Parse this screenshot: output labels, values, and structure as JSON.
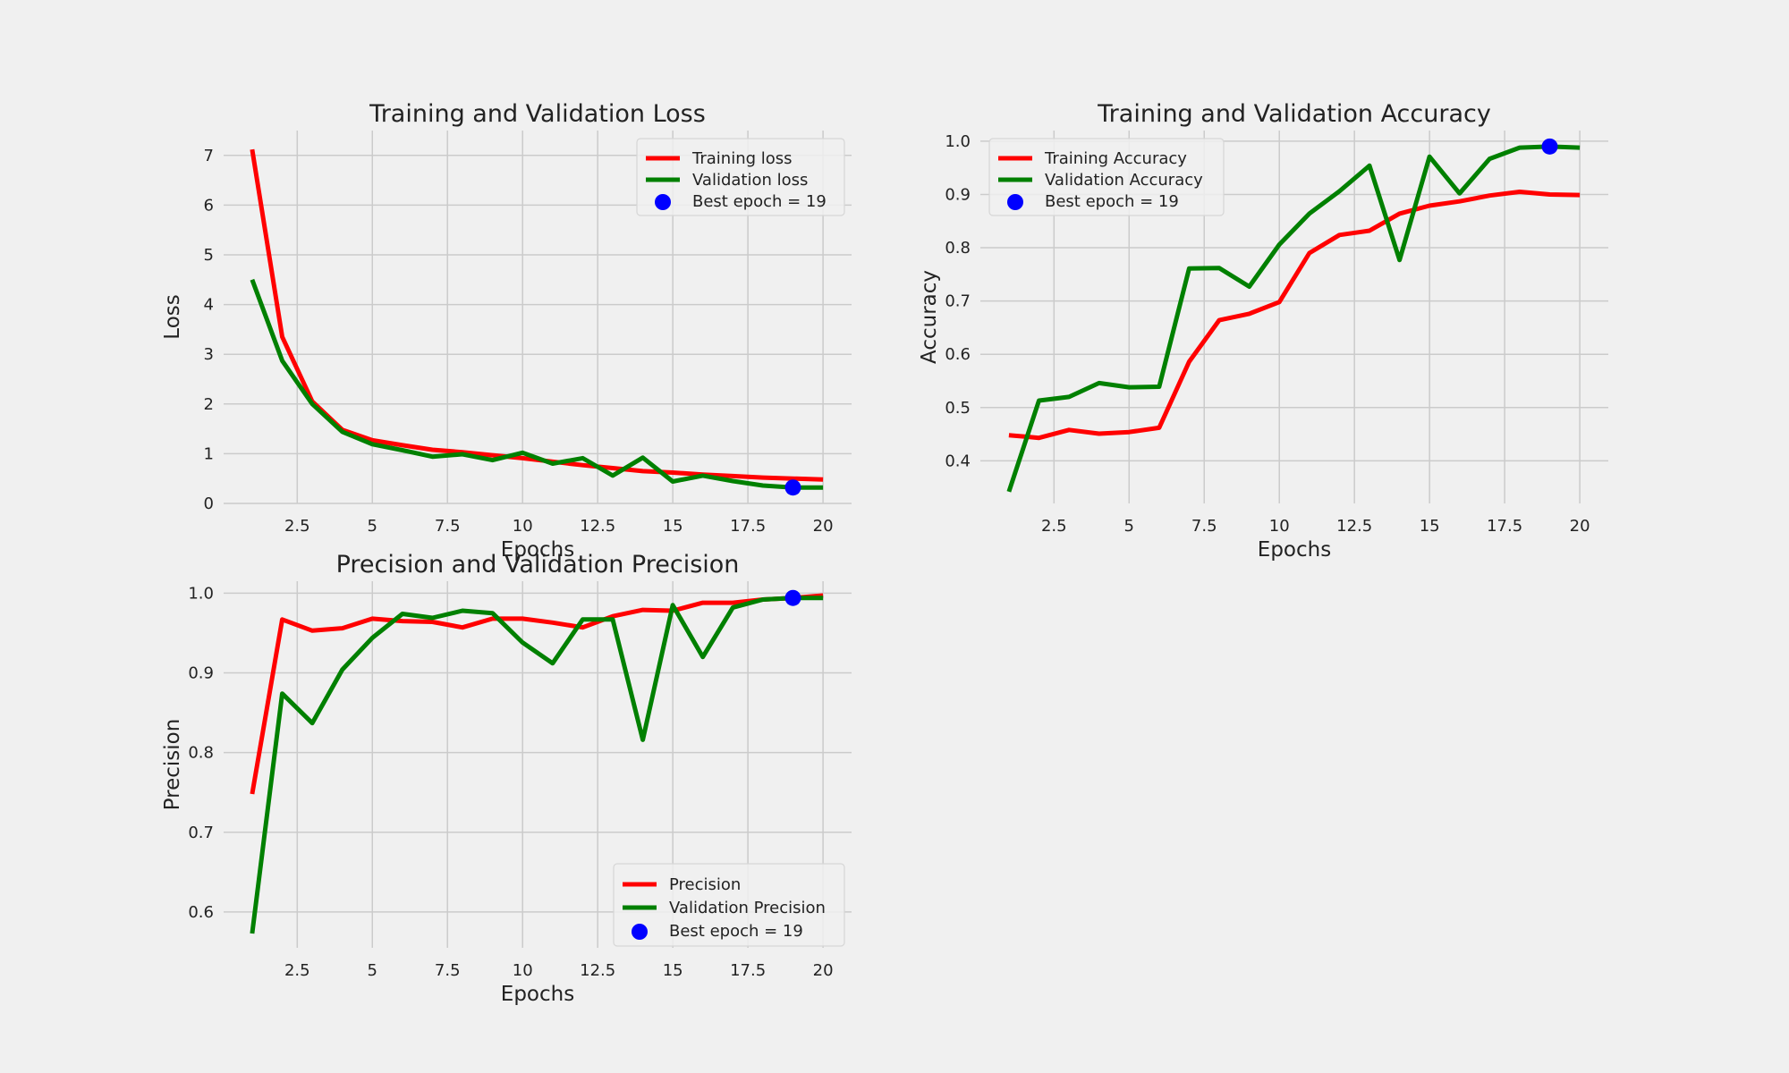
{
  "figure": {
    "background": "#f0f0f0",
    "grid_color": "#cbcbcb",
    "colors": {
      "training": "#ff0000",
      "validation": "#008000",
      "best": "#0000ff"
    }
  },
  "chart_data": [
    {
      "type": "line",
      "title": "Training and Validation Loss",
      "xlabel": "Epochs",
      "ylabel": "Loss",
      "grid": true,
      "legend_position": "top-right",
      "xlim": [
        0.05,
        20.95
      ],
      "ylim": [
        0,
        7.5
      ],
      "xticks": [
        2.5,
        5.0,
        7.5,
        10.0,
        12.5,
        15.0,
        17.5,
        20.0
      ],
      "yticks": [
        0,
        1,
        2,
        3,
        4,
        5,
        6,
        7
      ],
      "x": [
        1,
        2,
        3,
        4,
        5,
        6,
        7,
        8,
        9,
        10,
        11,
        12,
        13,
        14,
        15,
        16,
        17,
        18,
        19,
        20
      ],
      "series": [
        {
          "name": "Training loss",
          "color": "#ff0000",
          "values": [
            7.12,
            3.35,
            2.05,
            1.48,
            1.27,
            1.17,
            1.08,
            1.03,
            0.97,
            0.91,
            0.84,
            0.77,
            0.71,
            0.65,
            0.62,
            0.58,
            0.55,
            0.52,
            0.5,
            0.48
          ]
        },
        {
          "name": "Validation loss",
          "color": "#008000",
          "values": [
            4.5,
            2.87,
            2.0,
            1.44,
            1.19,
            1.07,
            0.94,
            0.99,
            0.87,
            1.02,
            0.8,
            0.91,
            0.56,
            0.92,
            0.44,
            0.56,
            0.45,
            0.36,
            0.32,
            0.32
          ]
        }
      ],
      "best_point": {
        "label": "Best epoch = 19",
        "x": 19,
        "y": 0.32,
        "color": "#0000ff"
      }
    },
    {
      "type": "line",
      "title": "Training and Validation Accuracy",
      "xlabel": "Epochs",
      "ylabel": "Accuracy",
      "grid": true,
      "legend_position": "top-left",
      "xlim": [
        0.05,
        20.95
      ],
      "ylim": [
        0.32,
        1.02
      ],
      "xticks": [
        2.5,
        5.0,
        7.5,
        10.0,
        12.5,
        15.0,
        17.5,
        20.0
      ],
      "yticks": [
        0.4,
        0.5,
        0.6,
        0.7,
        0.8,
        0.9,
        1.0
      ],
      "x": [
        1,
        2,
        3,
        4,
        5,
        6,
        7,
        8,
        9,
        10,
        11,
        12,
        13,
        14,
        15,
        16,
        17,
        18,
        19,
        20
      ],
      "series": [
        {
          "name": "Training Accuracy",
          "color": "#ff0000",
          "values": [
            0.448,
            0.443,
            0.458,
            0.451,
            0.454,
            0.462,
            0.586,
            0.664,
            0.676,
            0.698,
            0.79,
            0.824,
            0.832,
            0.864,
            0.879,
            0.887,
            0.898,
            0.905,
            0.9,
            0.899
          ]
        },
        {
          "name": "Validation Accuracy",
          "color": "#008000",
          "values": [
            0.342,
            0.513,
            0.52,
            0.546,
            0.538,
            0.539,
            0.761,
            0.762,
            0.727,
            0.806,
            0.864,
            0.906,
            0.954,
            0.777,
            0.971,
            0.902,
            0.967,
            0.988,
            0.99,
            0.988
          ]
        }
      ],
      "best_point": {
        "label": "Best epoch = 19",
        "x": 19,
        "y": 0.99,
        "color": "#0000ff"
      }
    },
    {
      "type": "line",
      "title": "Precision and Validation Precision",
      "xlabel": "Epochs",
      "ylabel": "Precision",
      "grid": true,
      "legend_position": "bottom-right",
      "xlim": [
        0.05,
        20.95
      ],
      "ylim": [
        0.555,
        1.015
      ],
      "xticks": [
        2.5,
        5.0,
        7.5,
        10.0,
        12.5,
        15.0,
        17.5,
        20.0
      ],
      "yticks": [
        0.6,
        0.7,
        0.8,
        0.9,
        1.0
      ],
      "x": [
        1,
        2,
        3,
        4,
        5,
        6,
        7,
        8,
        9,
        10,
        11,
        12,
        13,
        14,
        15,
        16,
        17,
        18,
        19,
        20
      ],
      "series": [
        {
          "name": "Precision",
          "color": "#ff0000",
          "values": [
            0.748,
            0.967,
            0.953,
            0.956,
            0.968,
            0.965,
            0.964,
            0.957,
            0.968,
            0.968,
            0.963,
            0.957,
            0.971,
            0.979,
            0.978,
            0.988,
            0.988,
            0.992,
            0.994,
            0.997
          ]
        },
        {
          "name": "Validation Precision",
          "color": "#008000",
          "values": [
            0.573,
            0.874,
            0.837,
            0.904,
            0.944,
            0.974,
            0.969,
            0.978,
            0.975,
            0.938,
            0.912,
            0.967,
            0.967,
            0.816,
            0.985,
            0.92,
            0.982,
            0.992,
            0.994,
            0.994
          ]
        }
      ],
      "best_point": {
        "label": "Best epoch = 19",
        "x": 19,
        "y": 0.994,
        "color": "#0000ff"
      }
    }
  ]
}
